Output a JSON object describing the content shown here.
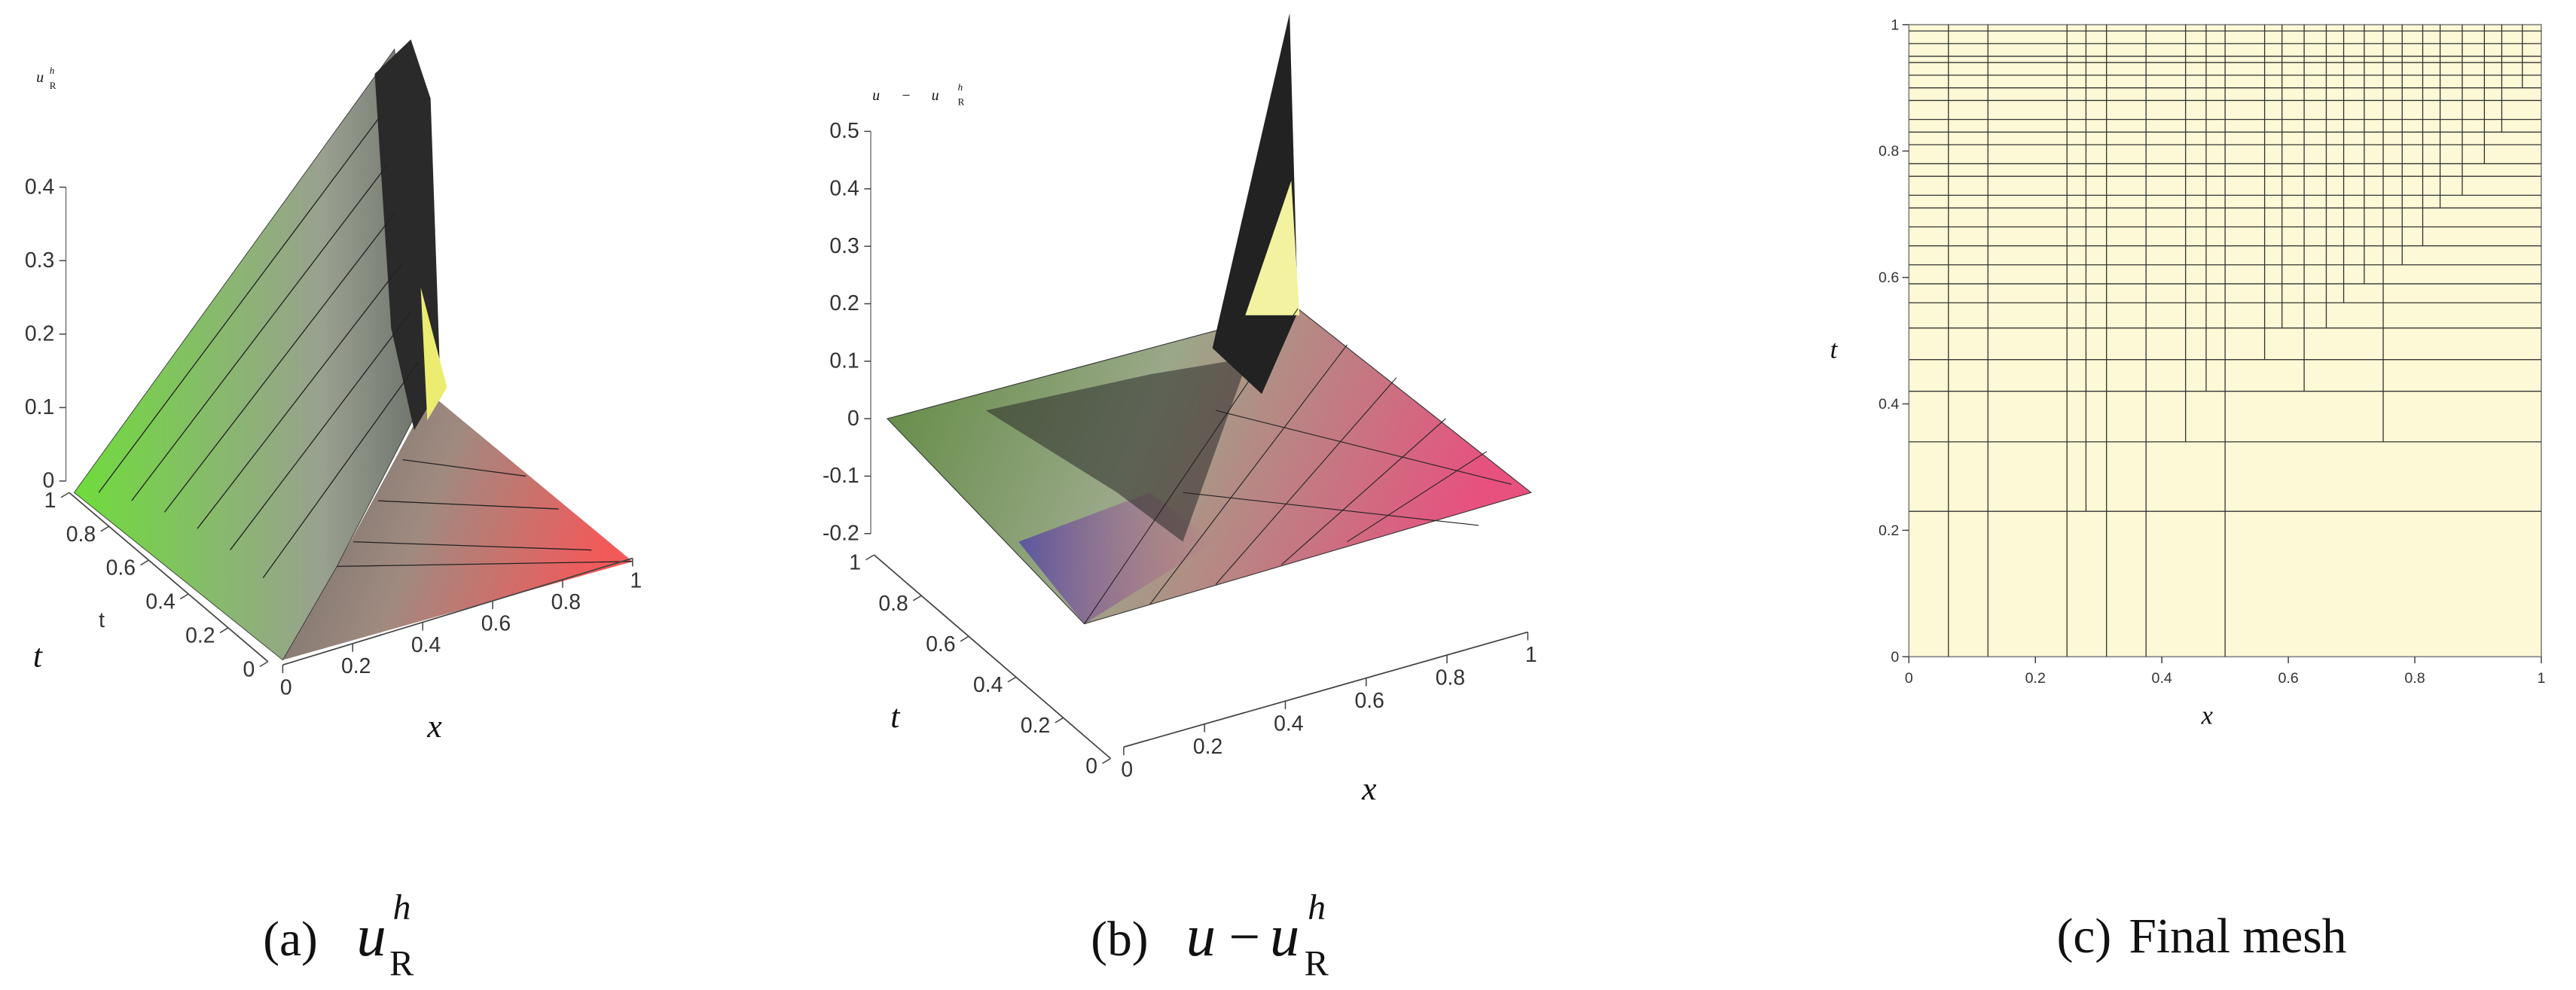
{
  "chart_data": [
    {
      "type": "surface3d",
      "zlabel": {
        "base": "u",
        "sub": "R",
        "sup": "h"
      },
      "ylabel_axis": "t",
      "ylabel": "t",
      "xlabel": "x",
      "zlim": [
        0,
        0.4
      ],
      "zticks": [
        0,
        0.1,
        0.2,
        0.3,
        0.4
      ],
      "ylim": [
        0,
        1
      ],
      "yticks": [
        0,
        0.2,
        0.4,
        0.6,
        0.8,
        1
      ],
      "xlim": [
        0,
        1
      ],
      "xticks": [
        0,
        0.2,
        0.4,
        0.6,
        0.8,
        1
      ],
      "caption": {
        "label": "(a)",
        "base": "u",
        "sub": "R",
        "sup": "h"
      }
    },
    {
      "type": "surface3d",
      "zlabel": {
        "left": "u",
        "op": "−",
        "base": "u",
        "sub": "R",
        "sup": "h"
      },
      "ylabel": "t",
      "xlabel": "x",
      "zlim": [
        -0.2,
        0.5
      ],
      "zticks": [
        -0.2,
        -0.1,
        0,
        0.1,
        0.2,
        0.3,
        0.4,
        0.5
      ],
      "ylim": [
        0,
        1
      ],
      "yticks": [
        0,
        0.2,
        0.4,
        0.6,
        0.8,
        1
      ],
      "xlim": [
        0,
        1
      ],
      "xticks": [
        0,
        0.2,
        0.4,
        0.6,
        0.8,
        1
      ],
      "caption": {
        "label": "(b)",
        "left": "u",
        "op": "−",
        "base": "u",
        "sub": "R",
        "sup": "h"
      }
    },
    {
      "type": "mesh",
      "xlabel": "x",
      "ylabel": "t",
      "xlim": [
        0,
        1
      ],
      "ylim": [
        0,
        1
      ],
      "xticks": [
        0,
        0.2,
        0.4,
        0.6,
        0.8,
        1
      ],
      "yticks": [
        0,
        0.2,
        0.4,
        0.6,
        0.8,
        1
      ],
      "color": "#fdf9d6",
      "horizontal": [
        0.23,
        0.34,
        0.42,
        0.47,
        0.52,
        0.56,
        0.59,
        0.62,
        0.65,
        0.68,
        0.71,
        0.73,
        0.76,
        0.78,
        0.81,
        0.83,
        0.85,
        0.88,
        0.9,
        0.92,
        0.94,
        0.95,
        0.97,
        0.99
      ],
      "vertical": [
        [
          0.0625,
          0
        ],
        [
          0.125,
          0
        ],
        [
          0.25,
          0
        ],
        [
          0.28,
          0.23
        ],
        [
          0.3125,
          0
        ],
        [
          0.375,
          0
        ],
        [
          0.4375,
          0.34
        ],
        [
          0.47,
          0.42
        ],
        [
          0.5,
          0
        ],
        [
          0.5625,
          0.47
        ],
        [
          0.59,
          0.52
        ],
        [
          0.625,
          0.42
        ],
        [
          0.66,
          0.52
        ],
        [
          0.6875,
          0.56
        ],
        [
          0.72,
          0.59
        ],
        [
          0.75,
          0.34
        ],
        [
          0.78,
          0.62
        ],
        [
          0.8125,
          0.65
        ],
        [
          0.84,
          0.71
        ],
        [
          0.875,
          0.73
        ],
        [
          0.91,
          0.78
        ],
        [
          0.9375,
          0.83
        ],
        [
          0.97,
          0.9
        ]
      ],
      "caption": {
        "label": "(c)",
        "text": "Final mesh"
      }
    }
  ]
}
